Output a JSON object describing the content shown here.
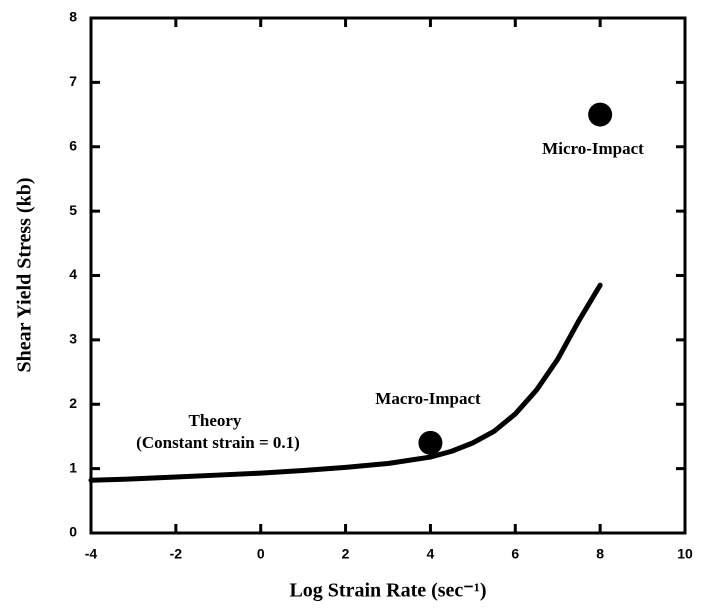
{
  "chart_data": {
    "type": "line",
    "xlabel": "Log Strain Rate (sec⁻¹)",
    "ylabel": "Shear Yield Stress (kb)",
    "xlim": [
      -4,
      10
    ],
    "xticks": [
      -4,
      -2,
      0,
      2,
      4,
      6,
      8,
      10
    ],
    "ylim": [
      0,
      8
    ],
    "yticks": [
      0,
      1,
      2,
      3,
      4,
      5,
      6,
      7,
      8
    ],
    "series": [
      {
        "color": "#000000",
        "x": [
          -4,
          -3,
          -2,
          -1,
          0,
          1,
          2,
          3,
          4,
          4.5,
          5,
          5.5,
          6,
          6.5,
          7,
          7.5,
          8
        ],
        "values": [
          0.82,
          0.84,
          0.87,
          0.9,
          0.93,
          0.97,
          1.02,
          1.08,
          1.18,
          1.27,
          1.4,
          1.58,
          1.85,
          2.22,
          2.7,
          3.3,
          3.85
        ]
      }
    ],
    "points": {
      "color": "#000000",
      "x": [
        4,
        8
      ],
      "values": [
        1.4,
        6.5
      ]
    },
    "annotations": [
      "Theory",
      "(Constant strain = 0.1)",
      "Macro-Impact",
      "Micro-Impact"
    ]
  }
}
